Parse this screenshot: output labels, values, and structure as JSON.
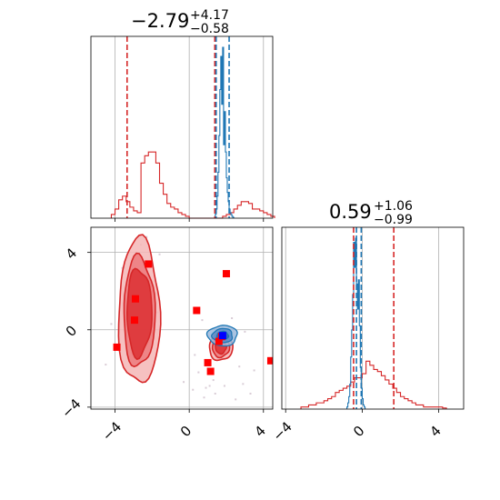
{
  "chart_data": {
    "type": "corner",
    "colors": {
      "red": "#d62728",
      "blue": "#1f77b4",
      "marker": "#ff0000",
      "marker_center": "#0000ff",
      "grid": "#b0b0b0"
    },
    "grid": true,
    "panels": [
      {
        "id": "marginal-x",
        "type": "histogram",
        "title": {
          "main": "−2.79",
          "plus": "+4.17",
          "minus": "−0.58"
        },
        "xlim": [
          -5.3,
          4.5
        ],
        "x_ticks": [
          -4,
          0,
          4
        ],
        "quantile_lines": {
          "red": [
            -3.35,
            1.38
          ],
          "blue": [
            1.45,
            2.15
          ]
        },
        "series": [
          {
            "name": "",
            "color": "red",
            "bins_start": -4.2,
            "bin_width": 0.2,
            "heights": [
              0.02,
              0.05,
              0.1,
              0.12,
              0.09,
              0.06,
              0.04,
              0.03,
              0.3,
              0.34,
              0.36,
              0.36,
              0.3,
              0.19,
              0.13,
              0.08,
              0.06,
              0.05,
              0.03,
              0.02,
              0.01,
              0,
              0,
              0,
              0,
              0,
              0,
              0,
              0,
              0,
              0.01,
              0.02,
              0.03,
              0.05,
              0.07,
              0.09,
              0.09,
              0.08,
              0.05,
              0.05,
              0.04,
              0.03,
              0.02,
              0.01
            ]
          },
          {
            "name": "",
            "color": "blue",
            "bins_start": 1.4,
            "bin_width": 0.05,
            "heights": [
              0.02,
              0.05,
              0.12,
              0.25,
              0.45,
              0.7,
              0.88,
              0.62,
              0.93,
              0.4,
              0.58,
              0.36,
              0.22,
              0.14,
              0.09,
              0.05,
              0.03,
              0.02,
              0.01,
              0.005
            ]
          }
        ]
      },
      {
        "id": "marginal-y",
        "type": "histogram",
        "title": {
          "main": "0.59",
          "plus": "+1.06",
          "minus": "−0.99"
        },
        "xlim": [
          -4.2,
          5.3
        ],
        "x_ticks": [
          -4,
          0,
          4
        ],
        "quantile_lines": {
          "red": [
            -0.45,
            1.65
          ],
          "blue": [
            -0.3,
            -0.05
          ]
        },
        "series": [
          {
            "name": "",
            "color": "red",
            "bins_start": -3.2,
            "bin_width": 0.2,
            "heights": [
              0.01,
              0.01,
              0.02,
              0.02,
              0.03,
              0.03,
              0.04,
              0.05,
              0.06,
              0.08,
              0.09,
              0.1,
              0.11,
              0.13,
              0.15,
              0.15,
              0.17,
              0.23,
              0.21,
              0.19,
              0.18,
              0.16,
              0.14,
              0.12,
              0.1,
              0.08,
              0.06,
              0.05,
              0.04,
              0.03,
              0.02,
              0.02,
              0.01,
              0.01,
              0.01,
              0.01,
              0.01,
              0.005
            ]
          },
          {
            "name": "",
            "color": "blue",
            "bins_start": -0.8,
            "bin_width": 0.05,
            "heights": [
              0.01,
              0.03,
              0.06,
              0.12,
              0.25,
              0.38,
              0.55,
              0.8,
              0.68,
              0.82,
              0.6,
              0.48,
              0.62,
              0.4,
              0.2,
              0.1,
              0.05,
              0.02,
              0.01
            ]
          }
        ]
      },
      {
        "id": "joint",
        "type": "contour",
        "xlim": [
          -5.3,
          4.5
        ],
        "ylim": [
          -4.1,
          5.3
        ],
        "x_ticks": [
          -4,
          0,
          4
        ],
        "y_ticks": [
          -4,
          0,
          4
        ],
        "red_contours": [
          {
            "center": [
              -2.7,
              0.9
            ],
            "radii": [
              2.25,
              1.7,
              1.35
            ],
            "aspect": [
              1.0,
              3.2
            ]
          },
          {
            "center": [
              1.7,
              -0.9
            ],
            "radii": [
              0.95,
              0.7,
              0.45
            ],
            "aspect": [
              1.0,
              1.2
            ]
          }
        ],
        "blue_contours": [
          {
            "center": [
              1.8,
              -0.3
            ],
            "radii": [
              0.38,
              0.26,
              0.15
            ],
            "aspect": [
              1.5,
              1.0
            ]
          }
        ],
        "markers": [
          [
            -2.2,
            3.4
          ],
          [
            -2.9,
            1.6
          ],
          [
            -2.95,
            0.5
          ],
          [
            -3.9,
            -0.9
          ],
          [
            0.4,
            1.0
          ],
          [
            2.0,
            2.9
          ],
          [
            1.0,
            -1.7
          ],
          [
            1.15,
            -2.15
          ],
          [
            1.6,
            -0.6
          ],
          [
            1.75,
            -0.35
          ],
          [
            4.4,
            -1.6
          ]
        ],
        "center_marker": [
          1.8,
          -0.3
        ],
        "scatter_points": [
          [
            -2.3,
            4.8
          ],
          [
            -2.6,
            4.4
          ],
          [
            -3.6,
            3.2
          ],
          [
            -1.8,
            1.9
          ],
          [
            -2.0,
            -0.9
          ],
          [
            -3.1,
            -1.1
          ],
          [
            -4.5,
            -1.8
          ],
          [
            -1.7,
            0.9
          ],
          [
            -4.2,
            0.3
          ],
          [
            -1.6,
            3.9
          ],
          [
            0.2,
            -3.1
          ],
          [
            0.9,
            -3.0
          ],
          [
            1.1,
            -2.9
          ],
          [
            1.3,
            -2.6
          ],
          [
            0.5,
            -2.2
          ],
          [
            0.3,
            -1.3
          ],
          [
            2.9,
            -2.8
          ],
          [
            3.3,
            -3.3
          ],
          [
            2.5,
            -3.6
          ],
          [
            0.8,
            -3.5
          ],
          [
            2.3,
            0.6
          ],
          [
            3.0,
            -0.1
          ],
          [
            0.7,
            0.5
          ],
          [
            -0.3,
            -2.7
          ],
          [
            3.5,
            -2.1
          ],
          [
            1.9,
            -2.9
          ],
          [
            1.4,
            -3.3
          ],
          [
            2.7,
            -1.9
          ]
        ]
      }
    ]
  }
}
